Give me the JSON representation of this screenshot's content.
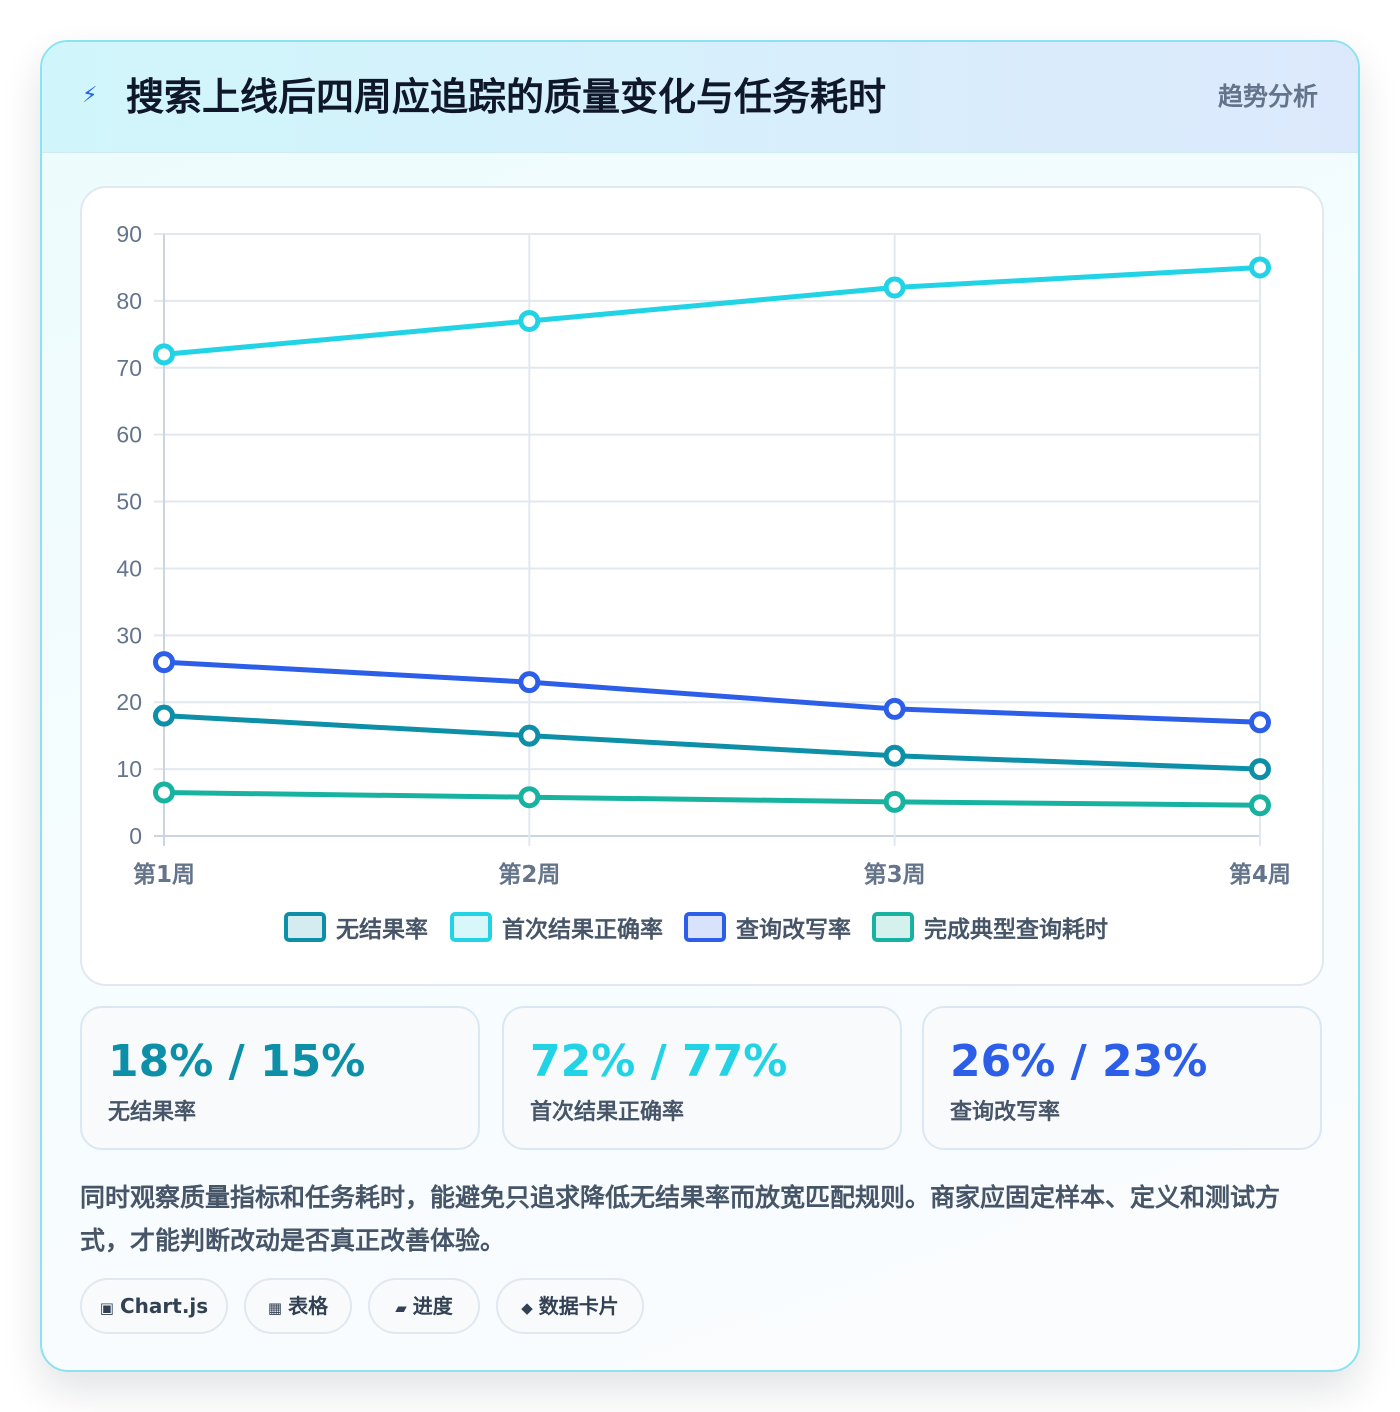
{
  "header": {
    "title": "搜索上线后四周应追踪的质量变化与任务耗时",
    "tag": "趋势分析",
    "icon": "lightning-icon"
  },
  "chart_data": {
    "type": "line",
    "categories": [
      "第1周",
      "第2周",
      "第3周",
      "第4周"
    ],
    "series": [
      {
        "name": "无结果率",
        "values": [
          18,
          15,
          12,
          10
        ],
        "color": "#0e8fa8"
      },
      {
        "name": "首次结果正确率",
        "values": [
          72,
          77,
          82,
          85
        ],
        "color": "#22d3e6"
      },
      {
        "name": "查询改写率",
        "values": [
          26,
          23,
          19,
          17
        ],
        "color": "#2d5ee8"
      },
      {
        "name": "完成典型查询耗时",
        "values": [
          6.5,
          5.8,
          5.1,
          4.6
        ],
        "color": "#18b3a0"
      }
    ],
    "ylim": [
      0,
      90
    ],
    "yticks": [
      0,
      10,
      20,
      30,
      40,
      50,
      60,
      70,
      80,
      90
    ],
    "grid": true,
    "legend": "bottom"
  },
  "kpis": [
    {
      "value": "18% / 15%",
      "label": "无结果率",
      "color": "#0e8fa8"
    },
    {
      "value": "72% / 77%",
      "label": "首次结果正确率",
      "color": "#22d3e6"
    },
    {
      "value": "26% / 23%",
      "label": "查询改写率",
      "color": "#2d5ee8"
    }
  ],
  "note": "同时观察质量指标和任务耗时，能避免只追求降低无结果率而放宽匹配规则。商家应固定样本、定义和测试方式，才能判断改动是否真正改善体验。",
  "chips": [
    {
      "icon": "▣",
      "label": "Chart.js"
    },
    {
      "icon": "▦",
      "label": "表格"
    },
    {
      "icon": "▰",
      "label": "进度"
    },
    {
      "icon": "◆",
      "label": "数据卡片"
    }
  ]
}
